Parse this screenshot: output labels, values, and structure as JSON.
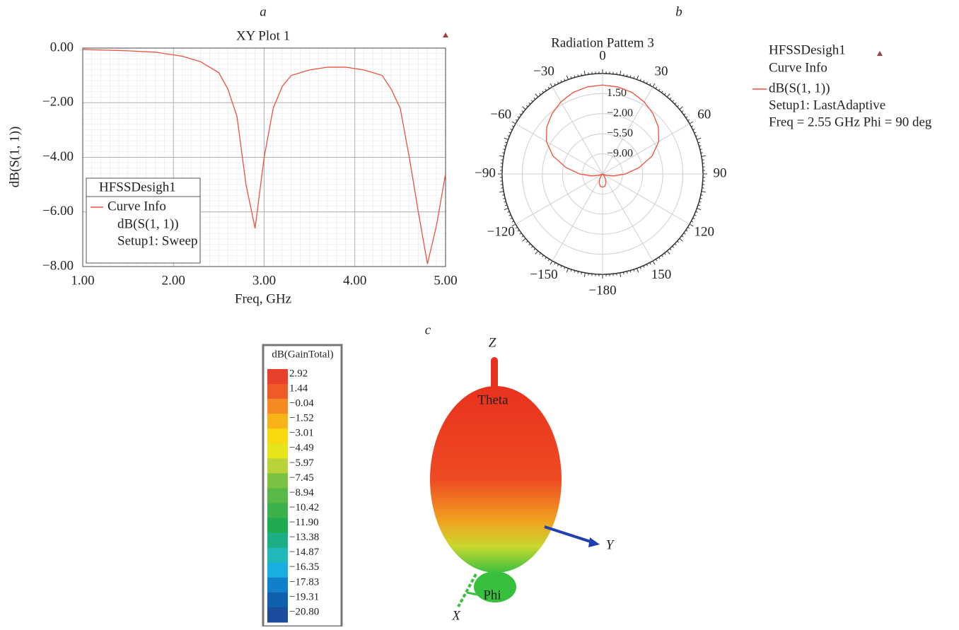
{
  "chart_data": [
    {
      "type": "line",
      "panel_label": "a",
      "title": "XY Plot 1",
      "x_label": "Freq, GHz",
      "y_label": "dB(S(1, 1))",
      "x": [
        1.0,
        1.5,
        1.8,
        2.1,
        2.3,
        2.5,
        2.6,
        2.7,
        2.8,
        2.9,
        3.0,
        3.1,
        3.2,
        3.3,
        3.5,
        3.7,
        3.9,
        4.1,
        4.3,
        4.4,
        4.5,
        4.6,
        4.7,
        4.8,
        4.9,
        5.0
      ],
      "series": [
        {
          "name": "dB(S(1, 1))",
          "color": "#f0503c",
          "values": [
            -0.05,
            -0.1,
            -0.15,
            -0.3,
            -0.5,
            -0.9,
            -1.5,
            -2.5,
            -5.0,
            -6.6,
            -4.0,
            -2.2,
            -1.4,
            -1.0,
            -0.8,
            -0.7,
            -0.7,
            -0.8,
            -1.0,
            -1.5,
            -2.2,
            -4.0,
            -6.0,
            -7.9,
            -6.5,
            -4.6
          ]
        }
      ],
      "legend": {
        "title": "HFSSDesigh1",
        "header": "Curve Info",
        "lines": [
          "Setup1: Sweep"
        ]
      },
      "xlim": [
        1,
        5
      ],
      "xticks": [
        {
          "value": 1,
          "label": "1.00"
        },
        {
          "value": 2,
          "label": "2.00"
        },
        {
          "value": 3,
          "label": "3.00"
        },
        {
          "value": 4,
          "label": "4.00"
        },
        {
          "value": 5,
          "label": "5.00"
        }
      ],
      "ylim": [
        -8,
        0
      ],
      "yticks": [
        {
          "value": 0,
          "label": "0.00"
        },
        {
          "value": -2,
          "label": "−2.00"
        },
        {
          "value": -4,
          "label": "−4.00"
        },
        {
          "value": -6,
          "label": "−6.00"
        },
        {
          "value": -8,
          "label": "−8.00"
        }
      ],
      "grid": true
    },
    {
      "type": "polar",
      "panel_label": "b",
      "title": "Radiation Pattem 3",
      "theta": [
        -180,
        -170,
        -160,
        -150,
        -140,
        -130,
        -120,
        -110,
        -100,
        -90,
        -80,
        -70,
        -60,
        -50,
        -40,
        -30,
        -20,
        -10,
        0,
        10,
        20,
        30,
        40,
        50,
        60,
        70,
        80,
        90,
        100,
        110,
        120,
        130,
        140,
        150,
        160,
        170,
        180
      ],
      "series": [
        {
          "name": "dB(S(1, 1))",
          "color": "#f0503c",
          "values": [
            -10.2,
            -10.3,
            -10.8,
            -11.5,
            -12.2,
            -12.4,
            -12.3,
            -11.8,
            -10.5,
            -8.5,
            -6.0,
            -3.3,
            -1.2,
            0.2,
            1.2,
            2.0,
            2.6,
            2.9,
            3.0,
            2.9,
            2.6,
            2.0,
            1.2,
            0.2,
            -1.2,
            -3.3,
            -6.0,
            -8.5,
            -10.5,
            -11.8,
            -12.3,
            -12.4,
            -12.2,
            -11.5,
            -10.8,
            -10.3,
            -10.2
          ]
        }
      ],
      "legend": {
        "title": "HFSSDesigh1",
        "header": "Curve Info",
        "lines": [
          "Setup1: LastAdaptive",
          "Freq = 2.55 GHz Phi = 90 deg"
        ]
      },
      "rlim": [
        -12.5,
        5
      ],
      "rticks": [
        {
          "value": 1.5,
          "label": "1.50"
        },
        {
          "value": -2,
          "label": "−2.00"
        },
        {
          "value": -5.5,
          "label": "−5.50"
        },
        {
          "value": -9,
          "label": "−9.00"
        }
      ],
      "angle_ticks": [
        0,
        30,
        60,
        90,
        120,
        150,
        {
          "value": -180,
          "label": "−180"
        },
        {
          "value": -150,
          "label": "−150"
        },
        {
          "value": -120,
          "label": "−120"
        },
        {
          "value": -90,
          "label": "−90"
        },
        {
          "value": -60,
          "label": "−60"
        },
        {
          "value": -30,
          "label": "−30"
        }
      ],
      "grid": true
    },
    {
      "type": "3d-pattern",
      "panel_label": "c",
      "colorbar": {
        "title": "dB(GainTotal)",
        "ticks": [
          2.92,
          1.44,
          {
            "value": -0.04,
            "label": "−0.04"
          },
          {
            "value": -1.52,
            "label": "−1.52"
          },
          {
            "value": -3.01,
            "label": "−3.01"
          },
          {
            "value": -4.49,
            "label": "−4.49"
          },
          {
            "value": -5.97,
            "label": "−5.97"
          },
          {
            "value": -7.45,
            "label": "−7.45"
          },
          {
            "value": -8.94,
            "label": "−8.94"
          },
          {
            "value": -10.42,
            "label": "−10.42"
          },
          {
            "value": -11.9,
            "label": "−11.90"
          },
          {
            "value": -13.38,
            "label": "−13.38"
          },
          {
            "value": -14.87,
            "label": "−14.87"
          },
          {
            "value": -16.35,
            "label": "−16.35"
          },
          {
            "value": -17.83,
            "label": "−17.83"
          },
          {
            "value": -19.31,
            "label": "−19.31"
          },
          {
            "value": -20.8,
            "label": "−20.80"
          }
        ],
        "colors": [
          "#e8402a",
          "#f05a28",
          "#f58a22",
          "#f8b416",
          "#f8d80e",
          "#e8e41c",
          "#b8d43a",
          "#7cc242",
          "#58b848",
          "#3cb04a",
          "#20aa50",
          "#1cae84",
          "#20b8b8",
          "#18aee0",
          "#1080cc",
          "#1060b0",
          "#1c4c9c"
        ]
      },
      "axis_labels": {
        "z": "Z",
        "y": "Y",
        "x": "X"
      },
      "annotations": [
        "Theta",
        "Phi"
      ]
    }
  ]
}
